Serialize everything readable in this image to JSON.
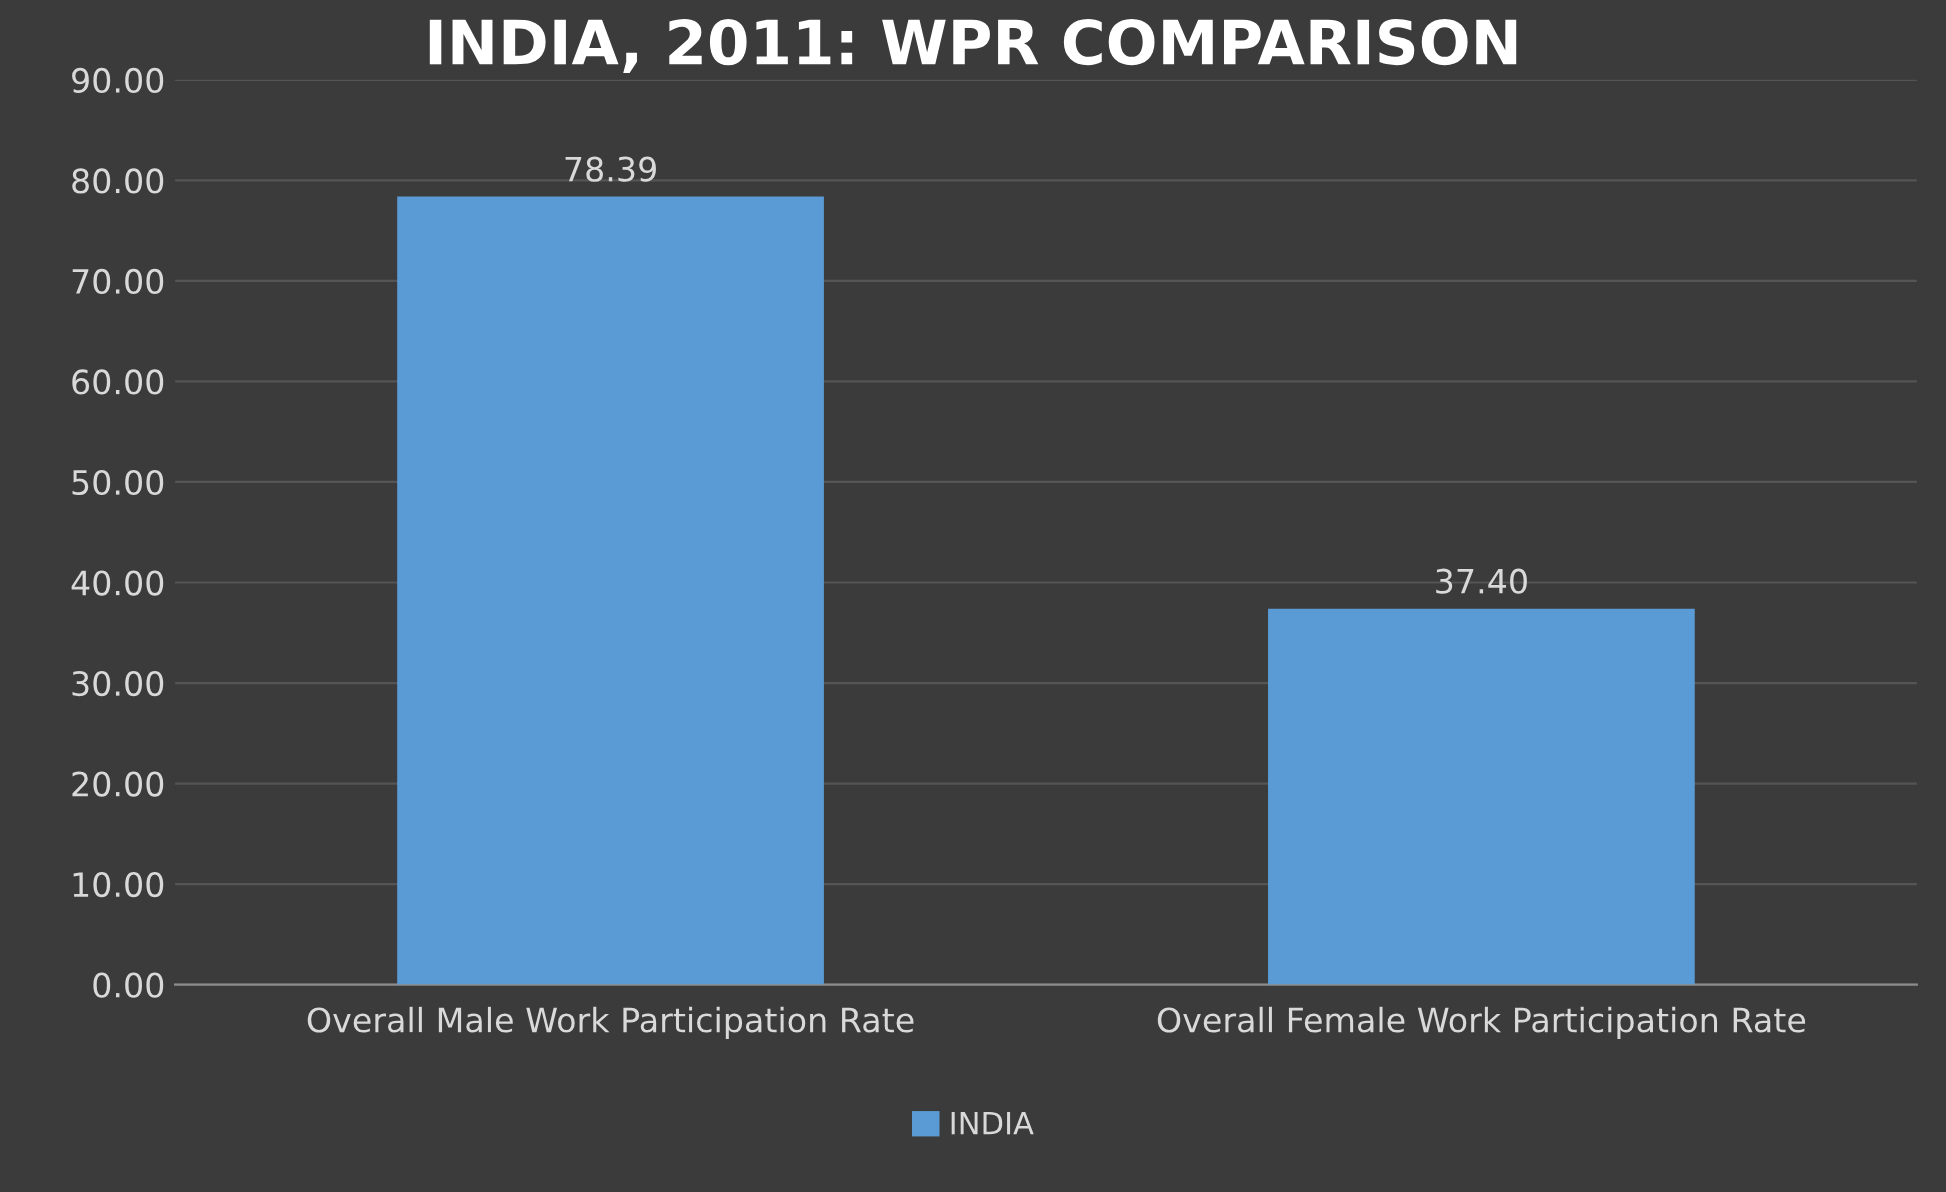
{
  "chart_data": {
    "type": "bar",
    "title": "INDIA, 2011: WPR COMPARISON",
    "categories": [
      "Overall Male Work Participation Rate",
      "Overall Female Work Participation Rate"
    ],
    "series": [
      {
        "name": "INDIA",
        "color": "#5b9bd5",
        "values": [
          78.39,
          37.4
        ],
        "value_labels": [
          "78.39",
          "37.40"
        ]
      }
    ],
    "ylim": [
      0,
      90
    ],
    "yticks": [
      {
        "value": 0,
        "label": "0.00"
      },
      {
        "value": 10,
        "label": "10.00"
      },
      {
        "value": 20,
        "label": "20.00"
      },
      {
        "value": 30,
        "label": "30.00"
      },
      {
        "value": 40,
        "label": "40.00"
      },
      {
        "value": 50,
        "label": "50.00"
      },
      {
        "value": 60,
        "label": "60.00"
      },
      {
        "value": 70,
        "label": "70.00"
      },
      {
        "value": 80,
        "label": "80.00"
      },
      {
        "value": 90,
        "label": "90.00"
      }
    ],
    "grid": "y",
    "legend": "bottom"
  }
}
